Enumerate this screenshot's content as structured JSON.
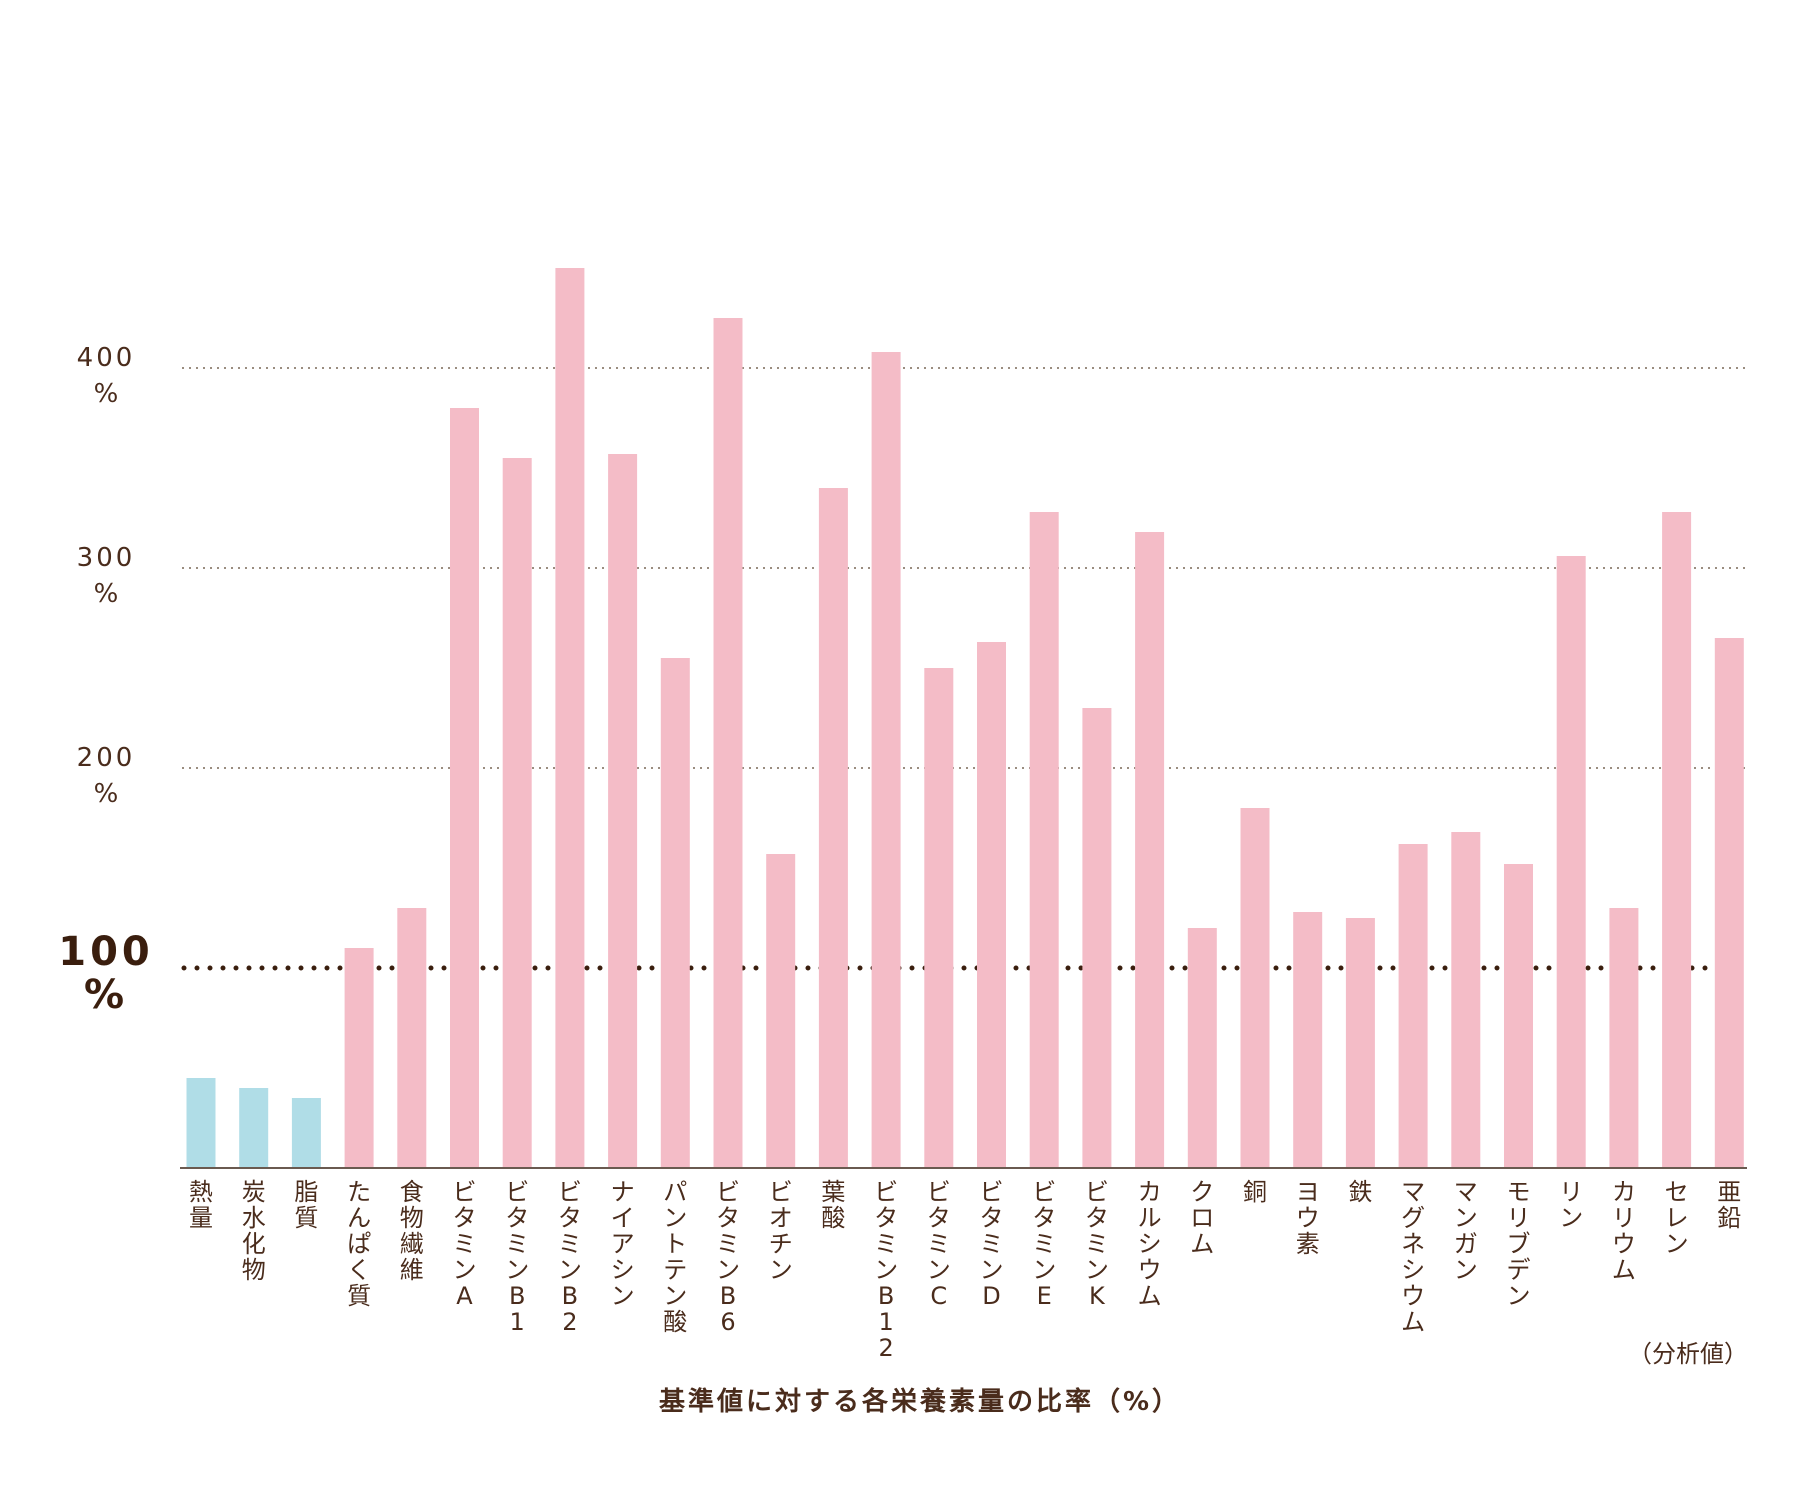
{
  "chart_data": {
    "type": "bar",
    "title": "基準値に対する各栄養素量の比率（%）",
    "note": "（分析値）",
    "ylim": [
      0,
      480
    ],
    "grid": true,
    "y_ticks": [
      {
        "value": 100,
        "num": "100",
        "unit": "%",
        "emphasis": true
      },
      {
        "value": 200,
        "num": "200",
        "unit": "%",
        "emphasis": false
      },
      {
        "value": 300,
        "num": "300",
        "unit": "%",
        "emphasis": false
      },
      {
        "value": 400,
        "num": "400",
        "unit": "%",
        "emphasis": false
      }
    ],
    "categories": [
      "熱量",
      "炭水化物",
      "脂質",
      "たんぱく質",
      "食物繊維",
      "ビタミンA",
      "ビタミンB1",
      "ビタミンB2",
      "ナイアシン",
      "パントテン酸",
      "ビタミンB6",
      "ビオチン",
      "葉酸",
      "ビタミンB12",
      "ビタミンC",
      "ビタミンD",
      "ビタミンE",
      "ビタミンK",
      "カルシウム",
      "クロム",
      "銅",
      "ヨウ素",
      "鉄",
      "マグネシウム",
      "マンガン",
      "モリブデン",
      "リン",
      "カリウム",
      "セレン",
      "亜鉛"
    ],
    "values": [
      45,
      40,
      35,
      110,
      130,
      380,
      355,
      450,
      357,
      255,
      425,
      157,
      340,
      408,
      250,
      263,
      328,
      230,
      318,
      120,
      180,
      128,
      125,
      162,
      168,
      152,
      306,
      130,
      328,
      265
    ],
    "groups": [
      "energy",
      "energy",
      "energy",
      "nutrient",
      "nutrient",
      "nutrient",
      "nutrient",
      "nutrient",
      "nutrient",
      "nutrient",
      "nutrient",
      "nutrient",
      "nutrient",
      "nutrient",
      "nutrient",
      "nutrient",
      "nutrient",
      "nutrient",
      "nutrient",
      "nutrient",
      "nutrient",
      "nutrient",
      "nutrient",
      "nutrient",
      "nutrient",
      "nutrient",
      "nutrient",
      "nutrient",
      "nutrient",
      "nutrient"
    ],
    "colors": {
      "energy": "#b0dde7",
      "nutrient": "#f4bcc7",
      "text": "#4a2c1c",
      "grid": "#9a8d80",
      "baseline": "#3a1e0e",
      "axis": "#6a5a50"
    }
  }
}
